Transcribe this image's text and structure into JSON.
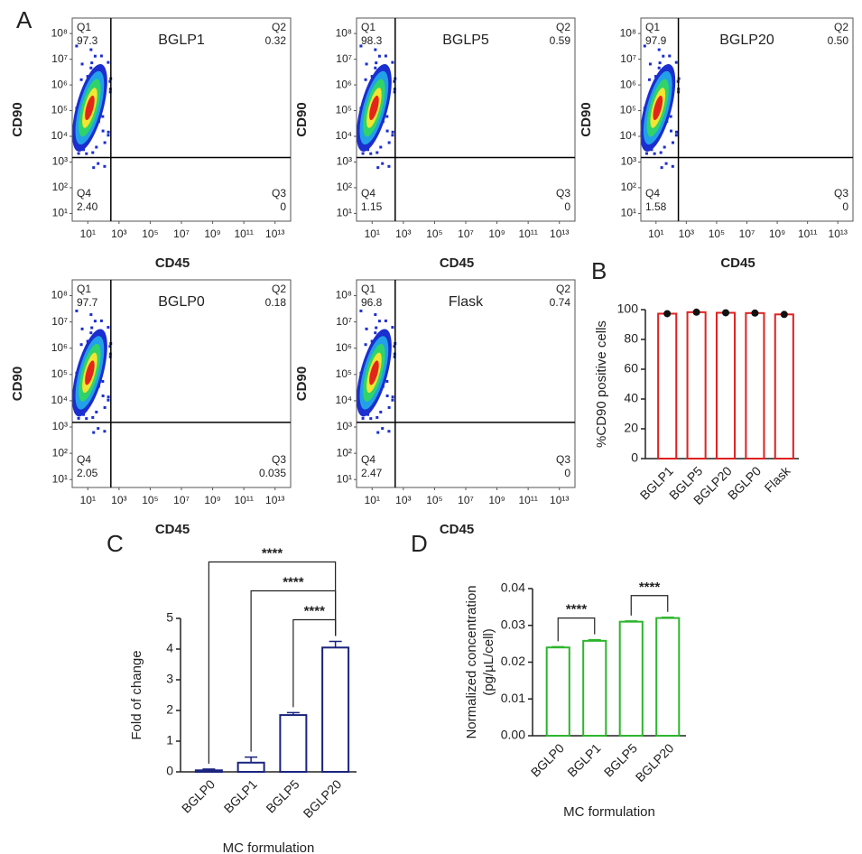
{
  "panel_labels": [
    "A",
    "B",
    "C",
    "D"
  ],
  "chart_data": [
    {
      "type": "flow",
      "title": "BGLP1",
      "xlabel": "CD45",
      "ylabel": "CD90",
      "quadrants": [
        "Q1",
        "Q2",
        "Q3",
        "Q4"
      ],
      "values": [
        97.3,
        0.32,
        0,
        2.4
      ],
      "value_labels": [
        "97.3",
        "0.32",
        "0",
        "2.40"
      ],
      "log_scale": true,
      "xlim": [
        1,
        100000000000000
      ],
      "ylim": [
        5,
        400000000
      ],
      "xticks": [
        {
          "value": 10,
          "label": "10¹"
        },
        {
          "value": 1000,
          "label": "10³"
        },
        {
          "value": 100000,
          "label": "10⁵"
        },
        {
          "value": 10000000,
          "label": "10⁷"
        },
        {
          "value": 1000000000,
          "label": "10⁹"
        },
        {
          "value": 100000000000,
          "label": "10¹¹"
        },
        {
          "value": 10000000000000,
          "label": "10¹³"
        }
      ],
      "yticks": [
        {
          "value": 10,
          "label": "10¹"
        },
        {
          "value": 100,
          "label": "10²"
        },
        {
          "value": 1000,
          "label": "10³"
        },
        {
          "value": 10000,
          "label": "10⁴"
        },
        {
          "value": 100000,
          "label": "10⁵"
        },
        {
          "value": 1000000,
          "label": "10⁶"
        },
        {
          "value": 10000000,
          "label": "10⁷"
        },
        {
          "value": 100000000,
          "label": "10⁸"
        }
      ],
      "gate_x": 300,
      "gate_y": 1500,
      "density_colors": [
        "#1b2ecf",
        "#22a0e8",
        "#2fd36a",
        "#f3e531",
        "#e3261c"
      ]
    },
    {
      "type": "flow",
      "title": "BGLP5",
      "xlabel": "CD45",
      "ylabel": "CD90",
      "quadrants": [
        "Q1",
        "Q2",
        "Q3",
        "Q4"
      ],
      "values": [
        98.3,
        0.59,
        0,
        1.15
      ],
      "value_labels": [
        "98.3",
        "0.59",
        "0",
        "1.15"
      ],
      "log_scale": true,
      "xlim": [
        1,
        100000000000000
      ],
      "ylim": [
        5,
        400000000
      ],
      "xticks": [
        {
          "value": 10,
          "label": "10¹"
        },
        {
          "value": 1000,
          "label": "10³"
        },
        {
          "value": 100000,
          "label": "10⁵"
        },
        {
          "value": 10000000,
          "label": "10⁷"
        },
        {
          "value": 1000000000,
          "label": "10⁹"
        },
        {
          "value": 100000000000,
          "label": "10¹¹"
        },
        {
          "value": 10000000000000,
          "label": "10¹³"
        }
      ],
      "yticks": [
        {
          "value": 10,
          "label": "10¹"
        },
        {
          "value": 100,
          "label": "10²"
        },
        {
          "value": 1000,
          "label": "10³"
        },
        {
          "value": 10000,
          "label": "10⁴"
        },
        {
          "value": 100000,
          "label": "10⁵"
        },
        {
          "value": 1000000,
          "label": "10⁶"
        },
        {
          "value": 10000000,
          "label": "10⁷"
        },
        {
          "value": 100000000,
          "label": "10⁸"
        }
      ],
      "gate_x": 300,
      "gate_y": 1500,
      "density_colors": [
        "#1b2ecf",
        "#22a0e8",
        "#2fd36a",
        "#f3e531",
        "#e3261c"
      ]
    },
    {
      "type": "flow",
      "title": "BGLP20",
      "xlabel": "CD45",
      "ylabel": "CD90",
      "quadrants": [
        "Q1",
        "Q2",
        "Q3",
        "Q4"
      ],
      "values": [
        97.9,
        0.5,
        0,
        1.58
      ],
      "value_labels": [
        "97.9",
        "0.50",
        "0",
        "1.58"
      ],
      "log_scale": true,
      "xlim": [
        1,
        100000000000000
      ],
      "ylim": [
        5,
        400000000
      ],
      "xticks": [
        {
          "value": 10,
          "label": "10¹"
        },
        {
          "value": 1000,
          "label": "10³"
        },
        {
          "value": 100000,
          "label": "10⁵"
        },
        {
          "value": 10000000,
          "label": "10⁷"
        },
        {
          "value": 1000000000,
          "label": "10⁹"
        },
        {
          "value": 100000000000,
          "label": "10¹¹"
        },
        {
          "value": 10000000000000,
          "label": "10¹³"
        }
      ],
      "yticks": [
        {
          "value": 10,
          "label": "10¹"
        },
        {
          "value": 100,
          "label": "10²"
        },
        {
          "value": 1000,
          "label": "10³"
        },
        {
          "value": 10000,
          "label": "10⁴"
        },
        {
          "value": 100000,
          "label": "10⁵"
        },
        {
          "value": 1000000,
          "label": "10⁶"
        },
        {
          "value": 10000000,
          "label": "10⁷"
        },
        {
          "value": 100000000,
          "label": "10⁸"
        }
      ],
      "gate_x": 300,
      "gate_y": 1500,
      "density_colors": [
        "#1b2ecf",
        "#22a0e8",
        "#2fd36a",
        "#f3e531",
        "#e3261c"
      ]
    },
    {
      "type": "flow",
      "title": "BGLP0",
      "xlabel": "CD45",
      "ylabel": "CD90",
      "quadrants": [
        "Q1",
        "Q2",
        "Q3",
        "Q4"
      ],
      "values": [
        97.7,
        0.18,
        0.035,
        2.05
      ],
      "value_labels": [
        "97.7",
        "0.18",
        "0.035",
        "2.05"
      ],
      "log_scale": true,
      "xlim": [
        1,
        100000000000000
      ],
      "ylim": [
        5,
        400000000
      ],
      "xticks": [
        {
          "value": 10,
          "label": "10¹"
        },
        {
          "value": 1000,
          "label": "10³"
        },
        {
          "value": 100000,
          "label": "10⁵"
        },
        {
          "value": 10000000,
          "label": "10⁷"
        },
        {
          "value": 1000000000,
          "label": "10⁹"
        },
        {
          "value": 100000000000,
          "label": "10¹¹"
        },
        {
          "value": 10000000000000,
          "label": "10¹³"
        }
      ],
      "yticks": [
        {
          "value": 10,
          "label": "10¹"
        },
        {
          "value": 100,
          "label": "10²"
        },
        {
          "value": 1000,
          "label": "10³"
        },
        {
          "value": 10000,
          "label": "10⁴"
        },
        {
          "value": 100000,
          "label": "10⁵"
        },
        {
          "value": 1000000,
          "label": "10⁶"
        },
        {
          "value": 10000000,
          "label": "10⁷"
        },
        {
          "value": 100000000,
          "label": "10⁸"
        }
      ],
      "gate_x": 300,
      "gate_y": 1500,
      "density_colors": [
        "#1b2ecf",
        "#22a0e8",
        "#2fd36a",
        "#f3e531",
        "#e3261c"
      ]
    },
    {
      "type": "flow",
      "title": "Flask",
      "xlabel": "CD45",
      "ylabel": "CD90",
      "quadrants": [
        "Q1",
        "Q2",
        "Q3",
        "Q4"
      ],
      "values": [
        96.8,
        0.74,
        0,
        2.47
      ],
      "value_labels": [
        "96.8",
        "0.74",
        "0",
        "2.47"
      ],
      "log_scale": true,
      "xlim": [
        1,
        100000000000000
      ],
      "ylim": [
        5,
        400000000
      ],
      "xticks": [
        {
          "value": 10,
          "label": "10¹"
        },
        {
          "value": 1000,
          "label": "10³"
        },
        {
          "value": 100000,
          "label": "10⁵"
        },
        {
          "value": 10000000,
          "label": "10⁷"
        },
        {
          "value": 1000000000,
          "label": "10⁹"
        },
        {
          "value": 100000000000,
          "label": "10¹¹"
        },
        {
          "value": 10000000000000,
          "label": "10¹³"
        }
      ],
      "yticks": [
        {
          "value": 10,
          "label": "10¹"
        },
        {
          "value": 100,
          "label": "10²"
        },
        {
          "value": 1000,
          "label": "10³"
        },
        {
          "value": 10000,
          "label": "10⁴"
        },
        {
          "value": 100000,
          "label": "10⁵"
        },
        {
          "value": 1000000,
          "label": "10⁶"
        },
        {
          "value": 10000000,
          "label": "10⁷"
        },
        {
          "value": 100000000,
          "label": "10⁸"
        }
      ],
      "gate_x": 300,
      "gate_y": 1500,
      "density_colors": [
        "#1b2ecf",
        "#22a0e8",
        "#2fd36a",
        "#f3e531",
        "#e3261c"
      ]
    },
    {
      "type": "bar",
      "categories": [
        "BGLP1",
        "BGLP5",
        "BGLP20",
        "BGLP0",
        "Flask"
      ],
      "values": [
        97.3,
        98.3,
        97.9,
        97.7,
        96.8
      ],
      "color": "#e02020",
      "points": true,
      "ylabel": "%CD90 positive cells",
      "ylim": [
        0,
        100
      ],
      "yticks": [
        0,
        20,
        40,
        60,
        80,
        100
      ]
    },
    {
      "type": "bar",
      "categories": [
        "BGLP0",
        "BGLP1",
        "BGLP5",
        "BGLP20"
      ],
      "values": [
        0.05,
        0.3,
        1.85,
        4.05
      ],
      "errors": [
        0.04,
        0.18,
        0.08,
        0.2
      ],
      "color": "#1a237e",
      "xlabel": "MC formulation",
      "ylabel": "Fold of change",
      "ylim": [
        0,
        5
      ],
      "yticks": [
        0,
        1,
        2,
        3,
        4,
        5
      ],
      "comparisons": [
        {
          "from": "BGLP0",
          "to": "BGLP20",
          "label": "****"
        },
        {
          "from": "BGLP1",
          "to": "BGLP20",
          "label": "****"
        },
        {
          "from": "BGLP5",
          "to": "BGLP20",
          "label": "****"
        }
      ]
    },
    {
      "type": "bar",
      "categories": [
        "BGLP0",
        "BGLP1",
        "BGLP5",
        "BGLP20"
      ],
      "values": [
        0.024,
        0.0258,
        0.031,
        0.032
      ],
      "errors": [
        0.0002,
        0.0003,
        0.0002,
        0.0002
      ],
      "color": "#2db52d",
      "xlabel": "MC formulation",
      "ylabel": [
        "Normalized concentration",
        "(pg/µL/cell)"
      ],
      "ylim": [
        0,
        0.04
      ],
      "yticks": [
        {
          "value": 0,
          "label": "0.00"
        },
        0.01,
        0.02,
        0.03,
        0.04
      ],
      "comparisons": [
        {
          "from": "BGLP0",
          "to": "BGLP1",
          "label": "****"
        },
        {
          "from": "BGLP5",
          "to": "BGLP20",
          "label": "****"
        }
      ]
    }
  ]
}
